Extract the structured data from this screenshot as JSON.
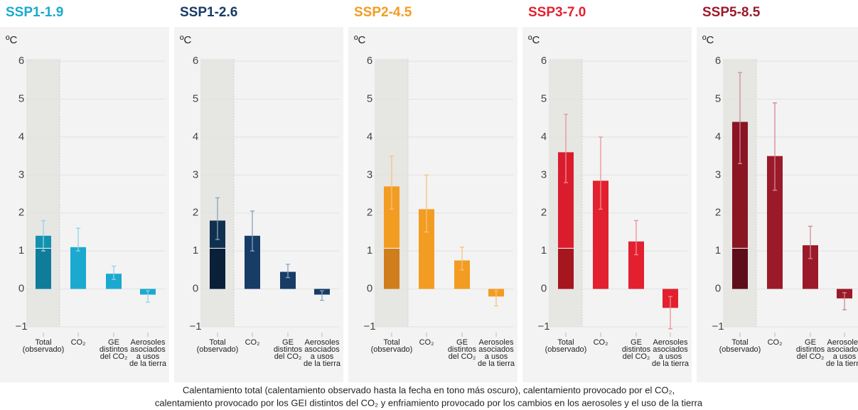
{
  "chart_data": [
    {
      "type": "bar",
      "title": "SSP1-1.9",
      "unit": "ºC",
      "color": "#1aa9cf",
      "total_color": "#1490b0",
      "observed_color": "#0f7d99",
      "error_color": "#8fd3e6",
      "title_color": "#1aa9cf",
      "categories": [
        [
          "Total",
          "(observado)"
        ],
        [
          "CO₂"
        ],
        [
          "GE",
          "distintos",
          "del CO₂"
        ],
        [
          "Aerosoles",
          "asociados",
          "a usos",
          "de la tierra"
        ]
      ],
      "values": [
        1.4,
        1.1,
        0.4,
        -0.15
      ],
      "errors": [
        [
          1.0,
          1.8
        ],
        [
          1.0,
          1.6
        ],
        [
          0.25,
          0.6
        ],
        [
          -0.35,
          -0.05
        ]
      ],
      "observed": 1.07,
      "ylim": [
        -1,
        6.9
      ],
      "yticks": [
        {
          "value": -1,
          "label": "−1"
        },
        0,
        1,
        2,
        3,
        4,
        5,
        6
      ],
      "grid": true
    },
    {
      "type": "bar",
      "title": "SSP1-2.6",
      "unit": "ºC",
      "color": "#173c66",
      "total_color": "#10304f",
      "observed_color": "#0a1f38",
      "error_color": "#8aa3bd",
      "title_color": "#173c66",
      "categories": [
        [
          "Total",
          "(observado)"
        ],
        [
          "CO₂"
        ],
        [
          "GE",
          "distintos",
          "del CO₂"
        ],
        [
          "Aerosoles",
          "asociados",
          "a usos",
          "de la tierra"
        ]
      ],
      "values": [
        1.8,
        1.4,
        0.45,
        -0.15
      ],
      "errors": [
        [
          1.3,
          2.4
        ],
        [
          1.0,
          2.05
        ],
        [
          0.3,
          0.65
        ],
        [
          -0.3,
          -0.05
        ]
      ],
      "observed": 1.07,
      "ylim": [
        -1,
        6.9
      ],
      "yticks": [
        {
          "value": -1,
          "label": "−1"
        },
        0,
        1,
        2,
        3,
        4,
        5,
        6
      ],
      "grid": true
    },
    {
      "type": "bar",
      "title": "SSP2-4.5",
      "unit": "ºC",
      "color": "#f39c22",
      "total_color": "#f39c22",
      "observed_color": "#d07d1b",
      "error_color": "#f7c27e",
      "title_color": "#f39c22",
      "categories": [
        [
          "Total",
          "(observado)"
        ],
        [
          "CO₂"
        ],
        [
          "GE",
          "distintos",
          "del CO₂"
        ],
        [
          "Aerosoles",
          "asociados",
          "a usos",
          "de la tierra"
        ]
      ],
      "values": [
        2.7,
        2.1,
        0.75,
        -0.2
      ],
      "errors": [
        [
          2.1,
          3.5
        ],
        [
          1.5,
          3.0
        ],
        [
          0.5,
          1.1
        ],
        [
          -0.45,
          -0.05
        ]
      ],
      "observed": 1.07,
      "ylim": [
        -1,
        6.9
      ],
      "yticks": [
        {
          "value": -1,
          "label": "−1"
        },
        0,
        1,
        2,
        3,
        4,
        5,
        6
      ],
      "grid": true
    },
    {
      "type": "bar",
      "title": "SSP3-7.0",
      "unit": "ºC",
      "color": "#e3202f",
      "total_color": "#d91d2c",
      "observed_color": "#a6161f",
      "error_color": "#f08f96",
      "title_color": "#e3202f",
      "categories": [
        [
          "Total",
          "(observado)"
        ],
        [
          "CO₂"
        ],
        [
          "GE",
          "distintos",
          "del CO₂"
        ],
        [
          "Aerosoles",
          "asociados",
          "a usos",
          "de la tierra"
        ]
      ],
      "values": [
        3.6,
        2.85,
        1.25,
        -0.5
      ],
      "errors": [
        [
          2.8,
          4.6
        ],
        [
          2.1,
          4.0
        ],
        [
          0.9,
          1.8
        ],
        [
          -1.05,
          -0.2
        ]
      ],
      "observed": 1.07,
      "ylim": [
        -1,
        6.9
      ],
      "yticks": [
        {
          "value": -1,
          "label": "−1"
        },
        0,
        1,
        2,
        3,
        4,
        5,
        6
      ],
      "grid": true
    },
    {
      "type": "bar",
      "title": "SSP5-8.5",
      "unit": "ºC",
      "color": "#9b1a2a",
      "total_color": "#8a1523",
      "observed_color": "#5e0e18",
      "error_color": "#d28a93",
      "title_color": "#9b1a2a",
      "categories": [
        [
          "Total",
          "(observado)"
        ],
        [
          "CO₂"
        ],
        [
          "GE",
          "distintos",
          "del CO₂"
        ],
        [
          "Aerosoles",
          "asociados",
          "a usos",
          "de la tierra"
        ]
      ],
      "values": [
        4.4,
        3.5,
        1.15,
        -0.25
      ],
      "errors": [
        [
          3.3,
          5.7
        ],
        [
          2.6,
          4.9
        ],
        [
          0.8,
          1.65
        ],
        [
          -0.55,
          -0.1
        ]
      ],
      "observed": 1.07,
      "ylim": [
        -1,
        6.9
      ],
      "yticks": [
        {
          "value": -1,
          "label": "−1"
        },
        0,
        1,
        2,
        3,
        4,
        5,
        6
      ],
      "grid": true
    }
  ],
  "caption": [
    "Calentamiento total (calentamiento observado hasta la fecha en tono más oscuro), calentamiento provocado por el CO₂,",
    "calentamiento provocado por los GEI distintos del CO₂ y enfriamiento provocado por los cambios en los aerosoles y el uso de la tierra"
  ]
}
